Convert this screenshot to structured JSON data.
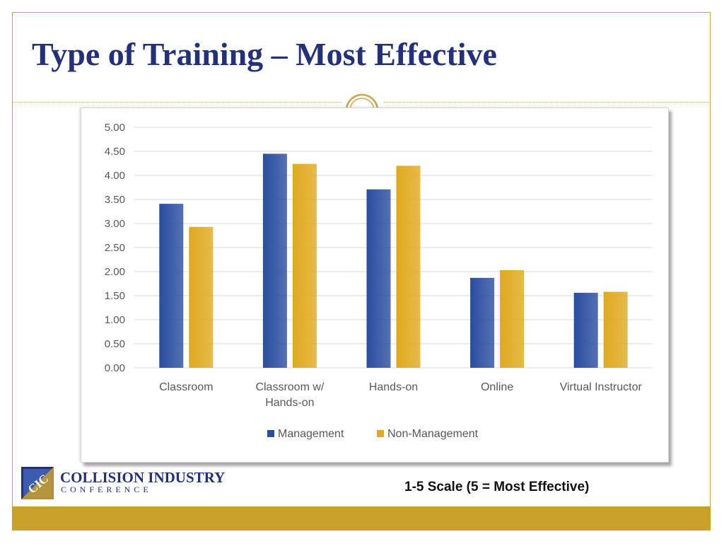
{
  "slide": {
    "title": "Type of Training – Most Effective",
    "scale_note": "1-5 Scale (5 = Most Effective)"
  },
  "logo": {
    "line1": "COLLISION INDUSTRY",
    "line2": "CONFERENCE",
    "mark_text": "CIC"
  },
  "colors": {
    "title": "#24317a",
    "gold": "#c9a02a",
    "management": "#2a4da0",
    "non_management": "#e0a91e"
  },
  "chart_data": {
    "type": "bar",
    "title": "",
    "xlabel": "",
    "ylabel": "",
    "categories": [
      [
        "Classroom"
      ],
      [
        "Classroom w/",
        "Hands-on"
      ],
      [
        "Hands-on"
      ],
      [
        "Online"
      ],
      [
        "Virtual Instructor"
      ]
    ],
    "series": [
      {
        "name": "Management",
        "color": "#2a4da0",
        "values": [
          3.41,
          4.45,
          3.71,
          1.87,
          1.56
        ]
      },
      {
        "name": "Non-Management",
        "color": "#e0a91e",
        "values": [
          2.93,
          4.24,
          4.2,
          2.03,
          1.58
        ]
      }
    ],
    "ylim": [
      0,
      5
    ],
    "yticks": [
      "0.00",
      "0.50",
      "1.00",
      "1.50",
      "2.00",
      "2.50",
      "3.00",
      "3.50",
      "4.00",
      "4.50",
      "5.00"
    ],
    "grid": true,
    "legend": "bottom"
  }
}
